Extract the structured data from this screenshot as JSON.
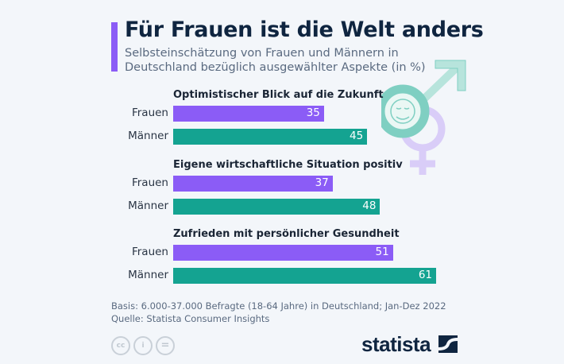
{
  "chart_data": {
    "type": "bar",
    "orientation": "horizontal",
    "title": "Für Frauen ist die Welt anders",
    "subtitle": "Selbsteinschätzung von Frauen und Männern in Deutschland bezüglich ausgewählter Aspekte (in %)",
    "categories": [
      "Optimistischer Blick auf die Zukunft",
      "Eigene wirtschaftliche Situation positiv",
      "Zufrieden mit persönlicher Gesundheit"
    ],
    "series": [
      {
        "name": "Frauen",
        "values": [
          35,
          37,
          51
        ],
        "color": "#8b5cf6"
      },
      {
        "name": "Männer",
        "values": [
          45,
          48,
          61
        ],
        "color": "#14a391"
      }
    ],
    "xlim": [
      0,
      100
    ],
    "grid": false
  },
  "footer": {
    "basis": "Basis: 6.000-37.000 Befragte (18-64 Jahre) in Deutschland; Jan-Dez 2022",
    "source": "Quelle: Statista Consumer Insights"
  },
  "license_icons": {
    "cc": "cc",
    "by": "i",
    "nd": "="
  },
  "logo": "statista",
  "colors": {
    "accent": "#8b5cf6",
    "frauen": "#8b5cf6",
    "maenner": "#14a391",
    "title": "#0f2540"
  }
}
